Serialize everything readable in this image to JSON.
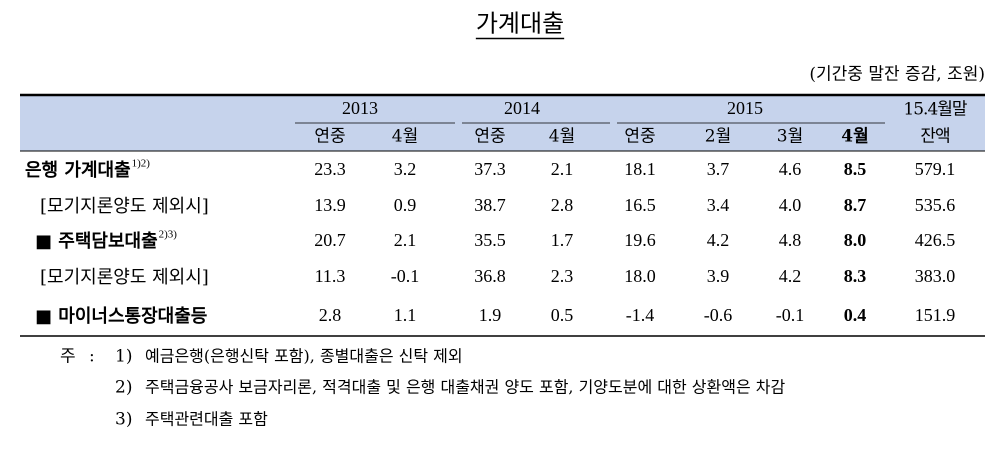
{
  "title": "가계대출",
  "unit": "(기간중 말잔 증감, 조원)",
  "header": {
    "groups": [
      "2013",
      "2014",
      "2015"
    ],
    "balance": [
      "15.4월말",
      "잔액"
    ],
    "columns": [
      "연중",
      "4월",
      "연중",
      "4월",
      "연중",
      "2월",
      "3월",
      "4월"
    ]
  },
  "rows": [
    {
      "label": "은행 가계대출",
      "note": "1)2)",
      "cells": [
        "23.3",
        "3.2",
        "37.3",
        "2.1",
        "18.1",
        "3.7",
        "4.6",
        "8.5",
        "579.1"
      ]
    },
    {
      "label": "[모기지론양도 제외시]",
      "cells": [
        "13.9",
        "0.9",
        "38.7",
        "2.8",
        "16.5",
        "3.4",
        "4.0",
        "8.7",
        "535.6"
      ]
    },
    {
      "label": "■ 주택담보대출",
      "note": "2)3)",
      "cells": [
        "20.7",
        "2.1",
        "35.5",
        "1.7",
        "19.6",
        "4.2",
        "4.8",
        "8.0",
        "426.5"
      ]
    },
    {
      "label": "[모기지론양도 제외시]",
      "cells": [
        "11.3",
        "-0.1",
        "36.8",
        "2.3",
        "18.0",
        "3.9",
        "4.2",
        "8.3",
        "383.0"
      ]
    },
    {
      "label": "■ 마이너스통장대출등",
      "cells": [
        "2.8",
        "1.1",
        "1.9",
        "0.5",
        "-1.4",
        "-0.6",
        "-0.1",
        "0.4",
        "151.9"
      ]
    }
  ],
  "notes": {
    "label": "주 :",
    "items": [
      {
        "marker": "1)",
        "text": "예금은행(은행신탁 포함), 종별대출은 신탁 제외"
      },
      {
        "marker": "2)",
        "text": "주택금융공사 보금자리론, 적격대출 및 은행 대출채권 양도 포함, 기양도분에 대한 상환액은 차감"
      },
      {
        "marker": "3)",
        "text": "주택관련대출 포함"
      }
    ]
  }
}
